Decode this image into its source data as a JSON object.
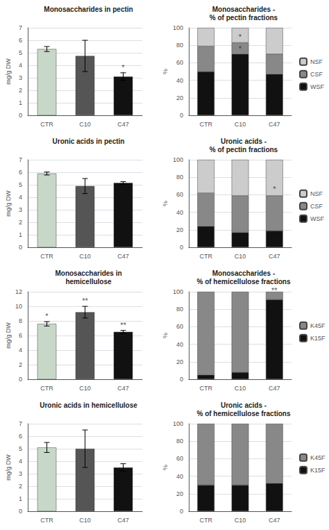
{
  "chart_data": [
    {
      "type": "bar",
      "title": "Monosaccharides in pectin",
      "categories": [
        "CTR",
        "C10",
        "C47"
      ],
      "values": [
        5.3,
        4.75,
        3.1
      ],
      "errors": [
        0.2,
        1.25,
        0.3
      ],
      "colors": [
        "#c8d8c8",
        "#555555",
        "#111111"
      ],
      "ylabel": "mg/g DW",
      "ylim": [
        0,
        7
      ],
      "yticks": [
        0,
        1,
        2,
        3,
        4,
        5,
        6,
        7
      ],
      "grid": true,
      "annotations": [
        {
          "text": "*",
          "x": "C47",
          "y": 3.52
        }
      ]
    },
    {
      "type": "bar",
      "stacked": true,
      "title": "Monosaccharides -\n% of pectin fractions",
      "categories": [
        "CTR",
        "C10",
        "C47"
      ],
      "series": [
        {
          "name": "WSF",
          "color": "#111111",
          "values": [
            50,
            70,
            47
          ]
        },
        {
          "name": "CSF",
          "color": "#888888",
          "values": [
            29,
            13,
            23
          ]
        },
        {
          "name": "NSF",
          "color": "#cccccc",
          "values": [
            21,
            17,
            30
          ]
        }
      ],
      "ylabel": "%",
      "ylim": [
        0,
        100
      ],
      "yticks": [
        0,
        20,
        40,
        60,
        80,
        100
      ],
      "grid": true,
      "legend": "right",
      "annotations": [
        {
          "text": "*",
          "x": "C10",
          "y": 85
        },
        {
          "text": "*",
          "x": "C10",
          "y": 72
        }
      ]
    },
    {
      "type": "bar",
      "title": "Uronic acids in pectin",
      "categories": [
        "CTR",
        "C10",
        "C47"
      ],
      "values": [
        5.9,
        4.9,
        5.15
      ],
      "errors": [
        0.12,
        0.6,
        0.1
      ],
      "colors": [
        "#c8d8c8",
        "#555555",
        "#111111"
      ],
      "ylabel": "mg/g DW",
      "ylim": [
        0,
        7
      ],
      "yticks": [
        0,
        1,
        2,
        3,
        4,
        5,
        6,
        7
      ],
      "grid": true
    },
    {
      "type": "bar",
      "stacked": true,
      "title": "Uronic acids -\n% of pectin fractions",
      "categories": [
        "CTR",
        "C10",
        "C47"
      ],
      "series": [
        {
          "name": "WSF",
          "color": "#111111",
          "values": [
            24,
            17,
            19
          ]
        },
        {
          "name": "CSF",
          "color": "#888888",
          "values": [
            38,
            42,
            40
          ]
        },
        {
          "name": "NSF",
          "color": "#cccccc",
          "values": [
            38,
            41,
            41
          ]
        }
      ],
      "ylabel": "%",
      "ylim": [
        0,
        100
      ],
      "yticks": [
        0,
        20,
        40,
        60,
        80,
        100
      ],
      "grid": true,
      "legend": "right",
      "annotations": [
        {
          "text": "*",
          "x": "C47",
          "y": 62
        }
      ]
    },
    {
      "type": "bar",
      "title": "Monosaccharides in\nhemicellulose",
      "categories": [
        "CTR",
        "C10",
        "C47"
      ],
      "values": [
        7.6,
        9.2,
        6.5
      ],
      "errors": [
        0.3,
        0.8,
        0.2
      ],
      "colors": [
        "#c8d8c8",
        "#555555",
        "#111111"
      ],
      "ylabel": "mg/g DW",
      "ylim": [
        0,
        12
      ],
      "yticks": [
        0,
        2,
        4,
        6,
        8,
        10,
        12
      ],
      "grid": true,
      "annotations": [
        {
          "text": "*",
          "x": "CTR",
          "y": 8.1
        },
        {
          "text": "**",
          "x": "C10",
          "y": 10.2
        },
        {
          "text": "**",
          "x": "C47",
          "y": 6.9
        }
      ]
    },
    {
      "type": "bar",
      "stacked": true,
      "title": "Monosaccharides -\n% of hemicellulose fractions",
      "categories": [
        "CTR",
        "C10",
        "C47"
      ],
      "series": [
        {
          "name": "K15F",
          "color": "#111111",
          "values": [
            5,
            8,
            91
          ]
        },
        {
          "name": "K45F",
          "color": "#888888",
          "values": [
            95,
            92,
            9
          ]
        }
      ],
      "ylabel": "%",
      "ylim": [
        0,
        100
      ],
      "yticks": [
        0,
        20,
        40,
        60,
        80,
        100
      ],
      "grid": true,
      "legend": "right",
      "annotations": [
        {
          "text": "**",
          "x": "C47",
          "y": 97
        }
      ]
    },
    {
      "type": "bar",
      "title": "Uronic acids in hemicellulose",
      "categories": [
        "CTR",
        "C10",
        "C47"
      ],
      "values": [
        5.1,
        5.0,
        3.5
      ],
      "errors": [
        0.4,
        1.5,
        0.3
      ],
      "colors": [
        "#c8d8c8",
        "#555555",
        "#111111"
      ],
      "ylabel": "mg/g DW",
      "ylim": [
        0,
        7
      ],
      "yticks": [
        0,
        1,
        2,
        3,
        4,
        5,
        6,
        7
      ],
      "grid": true
    },
    {
      "type": "bar",
      "stacked": true,
      "title": "Uronic acids -\n% of hemicellulose fractions",
      "categories": [
        "CTR",
        "C10",
        "C47"
      ],
      "series": [
        {
          "name": "K15F",
          "color": "#111111",
          "values": [
            30,
            30,
            32
          ]
        },
        {
          "name": "K45F",
          "color": "#888888",
          "values": [
            70,
            70,
            68
          ]
        }
      ],
      "ylabel": "%",
      "ylim": [
        0,
        100
      ],
      "yticks": [
        0,
        20,
        40,
        60,
        80,
        100
      ],
      "grid": true,
      "legend": "right"
    }
  ]
}
